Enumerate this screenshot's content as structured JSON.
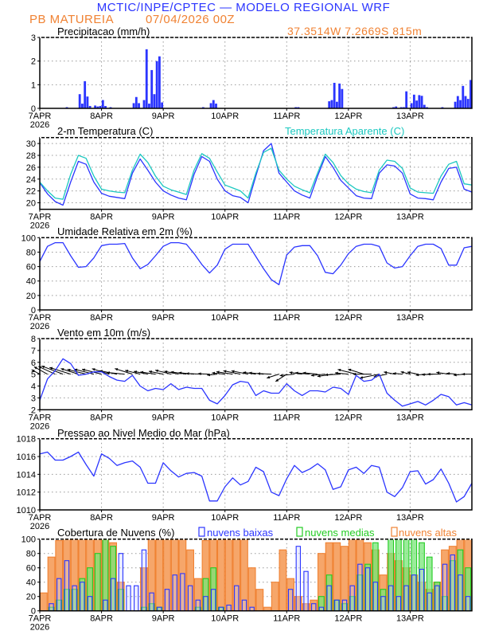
{
  "header": {
    "title": "MCTIC/INPE/CPTEC — MODELO REGIONAL WRF",
    "station": "PB MATUREIA",
    "run": "07/04/2026 00Z",
    "location": "37.3514W 7.2669S 815m"
  },
  "colors": {
    "blue": "#2b35ff",
    "cyan": "#1cc8c0",
    "orange": "#f08233",
    "green": "#22cc22",
    "grid": "#999999"
  },
  "x_axis": {
    "day_labels": [
      "7APR",
      "8APR",
      "9APR",
      "10APR",
      "11APR",
      "12APR",
      "13APR"
    ],
    "year": "2026",
    "hours_total": 168,
    "step_hours": 3
  },
  "chart_data": [
    {
      "id": "precip",
      "type": "bar",
      "title": "Precipitacao (mm/h)",
      "ylim": [
        0,
        3
      ],
      "yticks": [
        0,
        1,
        2,
        3
      ],
      "grid": true,
      "hourly_bars": [
        [
          10,
          0.05
        ],
        [
          15,
          0.6
        ],
        [
          16,
          0.2
        ],
        [
          17,
          1.15
        ],
        [
          18,
          0.5
        ],
        [
          19,
          0.1
        ],
        [
          21,
          0.12
        ],
        [
          22,
          0.08
        ],
        [
          23,
          0.1
        ],
        [
          24,
          0.35
        ],
        [
          25,
          0.1
        ],
        [
          27,
          0.05
        ],
        [
          36,
          0.22
        ],
        [
          37,
          0.48
        ],
        [
          38,
          0.22
        ],
        [
          40,
          0.35
        ],
        [
          41,
          2.5
        ],
        [
          42,
          0.2
        ],
        [
          43,
          1.62
        ],
        [
          44,
          0.6
        ],
        [
          45,
          2.0
        ],
        [
          46,
          2.2
        ],
        [
          47,
          0.25
        ],
        [
          63,
          0.05
        ],
        [
          66,
          0.22
        ],
        [
          67,
          0.35
        ],
        [
          68,
          0.2
        ],
        [
          99,
          0.05
        ],
        [
          100,
          0.05
        ],
        [
          112,
          0.3
        ],
        [
          113,
          0.35
        ],
        [
          114,
          1.08
        ],
        [
          115,
          0.28
        ],
        [
          116,
          1.05
        ],
        [
          117,
          0.82
        ],
        [
          137,
          0.05
        ],
        [
          138,
          0.08
        ],
        [
          140,
          0.05
        ],
        [
          141,
          0.05
        ],
        [
          142,
          0.72
        ],
        [
          144,
          0.22
        ],
        [
          145,
          0.58
        ],
        [
          146,
          0.33
        ],
        [
          147,
          0.56
        ],
        [
          148,
          0.53
        ],
        [
          149,
          0.15
        ],
        [
          150,
          0.05
        ],
        [
          156,
          0.05
        ],
        [
          161,
          0.28
        ],
        [
          162,
          0.52
        ],
        [
          163,
          0.35
        ],
        [
          164,
          0.95
        ],
        [
          165,
          0.52
        ],
        [
          166,
          0.4
        ],
        [
          167,
          1.2
        ]
      ]
    },
    {
      "id": "temp",
      "type": "line",
      "title": "2-m Temperatura (C)",
      "ylim": [
        18.9,
        31
      ],
      "yticks": [
        20,
        22,
        24,
        26,
        28,
        30
      ],
      "grid": true,
      "series": [
        {
          "name": "2-m Temperatura (C)",
          "color": "#2b35ff",
          "values": [
            23.4,
            21.5,
            20.2,
            19.6,
            23.5,
            27.0,
            26.5,
            23.5,
            21.6,
            21.1,
            20.9,
            20.7,
            25.0,
            27.4,
            25.5,
            23.5,
            22.0,
            21.3,
            20.8,
            20.5,
            24.8,
            27.8,
            27.0,
            24.0,
            22.0,
            21.2,
            20.9,
            20.0,
            24.5,
            28.8,
            30.0,
            25.0,
            23.5,
            22.0,
            21.3,
            20.8,
            24.5,
            27.8,
            26.0,
            23.8,
            22.5,
            21.2,
            20.8,
            20.7,
            25.0,
            26.4,
            26.2,
            25.0,
            21.5,
            20.8,
            20.7,
            20.5,
            23.5,
            25.8,
            26.0,
            22.3,
            21.8
          ]
        },
        {
          "name": "Temperatura Aparente (C)",
          "color": "#1cc8c0",
          "values": [
            23.5,
            22.0,
            20.8,
            20.6,
            24.8,
            28.0,
            27.5,
            24.5,
            22.3,
            22.0,
            21.8,
            21.7,
            25.5,
            28.2,
            26.8,
            24.5,
            22.8,
            22.2,
            21.8,
            21.4,
            25.5,
            28.3,
            27.5,
            25.2,
            23.0,
            22.5,
            22.0,
            20.8,
            25.0,
            28.5,
            29.2,
            25.5,
            24.0,
            22.8,
            22.2,
            21.7,
            25.0,
            28.2,
            26.8,
            24.6,
            23.2,
            22.3,
            21.9,
            21.7,
            25.5,
            27.2,
            27.0,
            25.8,
            22.5,
            21.8,
            21.7,
            21.6,
            24.5,
            26.5,
            27.0,
            23.2,
            23.0
          ]
        }
      ]
    },
    {
      "id": "rh",
      "type": "line",
      "title": "Umidade Relativa em 2m (%)",
      "ylim": [
        0,
        100
      ],
      "yticks": [
        0,
        20,
        40,
        60,
        80,
        100
      ],
      "grid": true,
      "series": [
        {
          "color": "#2b35ff",
          "values": [
            67,
            88,
            93,
            93,
            75,
            59,
            60,
            72,
            89,
            91,
            91,
            92,
            72,
            57,
            63,
            75,
            88,
            93,
            93,
            91,
            78,
            63,
            51,
            62,
            84,
            91,
            91,
            91,
            74,
            57,
            42,
            35,
            76,
            87,
            89,
            89,
            75,
            52,
            50,
            62,
            78,
            88,
            91,
            91,
            88,
            65,
            58,
            60,
            75,
            88,
            91,
            91,
            85,
            62,
            62,
            86,
            88
          ]
        }
      ]
    },
    {
      "id": "wind",
      "type": "line",
      "title": "Vento em 10m (m/s)",
      "ylim": [
        2,
        8
      ],
      "yticks": [
        2,
        3,
        4,
        5,
        6,
        7,
        8
      ],
      "grid": true,
      "vector_baseline": 5,
      "series": [
        {
          "color": "#2b35ff",
          "values": [
            2.8,
            4.6,
            5.3,
            6.3,
            5.9,
            4.9,
            5.0,
            5.2,
            5.2,
            4.8,
            4.5,
            4.4,
            4.9,
            4.0,
            3.6,
            3.8,
            3.7,
            4.2,
            3.7,
            3.9,
            3.8,
            3.8,
            2.8,
            2.5,
            3.2,
            4.1,
            4.4,
            4.3,
            3.2,
            3.6,
            3.4,
            3.4,
            4.2,
            3.6,
            3.2,
            3.6,
            3.6,
            3.5,
            3.9,
            3.8,
            3.3,
            4.9,
            4.4,
            4.5,
            5.0,
            3.4,
            2.8,
            2.3,
            2.5,
            2.7,
            2.4,
            2.8,
            3.3,
            3.1,
            2.4,
            2.6,
            2.4
          ]
        }
      ],
      "direction_from_deg": [
        135,
        135,
        130,
        125,
        120,
        120,
        115,
        115,
        115,
        120,
        110,
        100,
        120,
        115,
        110,
        105,
        110,
        115,
        110,
        105,
        100,
        95,
        95,
        80,
        100,
        105,
        110,
        110,
        105,
        100,
        95,
        60,
        40,
        80,
        105,
        100,
        100,
        80,
        75,
        85,
        100,
        115,
        120,
        90,
        70,
        70,
        110,
        100,
        115,
        110,
        80,
        85,
        90,
        105,
        100,
        80,
        90
      ]
    },
    {
      "id": "pres",
      "type": "line",
      "title": "Pressao ao Nivel Medio do Mar (hPa)",
      "ylim": [
        1010,
        1018
      ],
      "yticks": [
        1010,
        1012,
        1014,
        1016,
        1018
      ],
      "grid": true,
      "series": [
        {
          "color": "#2b35ff",
          "values": [
            1016.3,
            1016.5,
            1015.6,
            1015.6,
            1016.0,
            1016.5,
            1015.1,
            1013.8,
            1016.3,
            1015.8,
            1015.0,
            1015.3,
            1015.5,
            1014.8,
            1013.0,
            1013.0,
            1015.3,
            1014.4,
            1013.7,
            1014.1,
            1014.2,
            1013.8,
            1011.0,
            1011.0,
            1012.6,
            1013.6,
            1012.8,
            1013.2,
            1014.8,
            1014.3,
            1012.0,
            1011.6,
            1013.5,
            1015.0,
            1014.2,
            1014.6,
            1015.2,
            1014.5,
            1012.3,
            1012.6,
            1014.5,
            1014.8,
            1014.1,
            1015.0,
            1014.8,
            1012.0,
            1011.5,
            1012.5,
            1014.3,
            1014.4,
            1012.9,
            1013.4,
            1014.6,
            1013.0,
            1010.9,
            1011.5,
            1013.0
          ]
        }
      ]
    },
    {
      "id": "cloud",
      "type": "bar",
      "title": "Cobertura de Nuvens (%)",
      "ylim": [
        0,
        100
      ],
      "yticks": [
        0,
        20,
        40,
        60,
        80,
        100
      ],
      "grid": true,
      "legend": "top",
      "series": [
        {
          "name": "nuvens altas",
          "color": "#f08233",
          "values": [
            25,
            75,
            98,
            100,
            100,
            100,
            100,
            100,
            100,
            95,
            40,
            0,
            0,
            60,
            100,
            100,
            100,
            100,
            100,
            85,
            45,
            98,
            100,
            100,
            100,
            100,
            100,
            60,
            30,
            5,
            40,
            85,
            45,
            20,
            10,
            15,
            80,
            95,
            95,
            90,
            100,
            100,
            95,
            85,
            50,
            80,
            70,
            60,
            50,
            40,
            30,
            40,
            85,
            90,
            100,
            100
          ]
        },
        {
          "name": "nuvens medias",
          "color": "#22cc22",
          "values": [
            0,
            5,
            15,
            30,
            30,
            45,
            60,
            80,
            100,
            90,
            30,
            0,
            0,
            5,
            10,
            5,
            0,
            0,
            0,
            0,
            5,
            45,
            60,
            5,
            0,
            0,
            0,
            0,
            0,
            0,
            0,
            0,
            0,
            0,
            0,
            0,
            20,
            50,
            15,
            10,
            20,
            50,
            65,
            95,
            30,
            100,
            100,
            100,
            100,
            95,
            75,
            40,
            20,
            70,
            85,
            60
          ]
        },
        {
          "name": "nuvens baixas",
          "color": "#2b35ff",
          "values": [
            0,
            10,
            45,
            70,
            35,
            40,
            20,
            0,
            15,
            45,
            80,
            35,
            35,
            85,
            25,
            5,
            30,
            50,
            52,
            35,
            15,
            20,
            30,
            5,
            8,
            35,
            15,
            5,
            0,
            0,
            0,
            0,
            30,
            90,
            55,
            10,
            5,
            35,
            15,
            15,
            35,
            65,
            60,
            40,
            20,
            35,
            20,
            35,
            50,
            58,
            25,
            35,
            65,
            78,
            50,
            20
          ]
        }
      ]
    }
  ]
}
